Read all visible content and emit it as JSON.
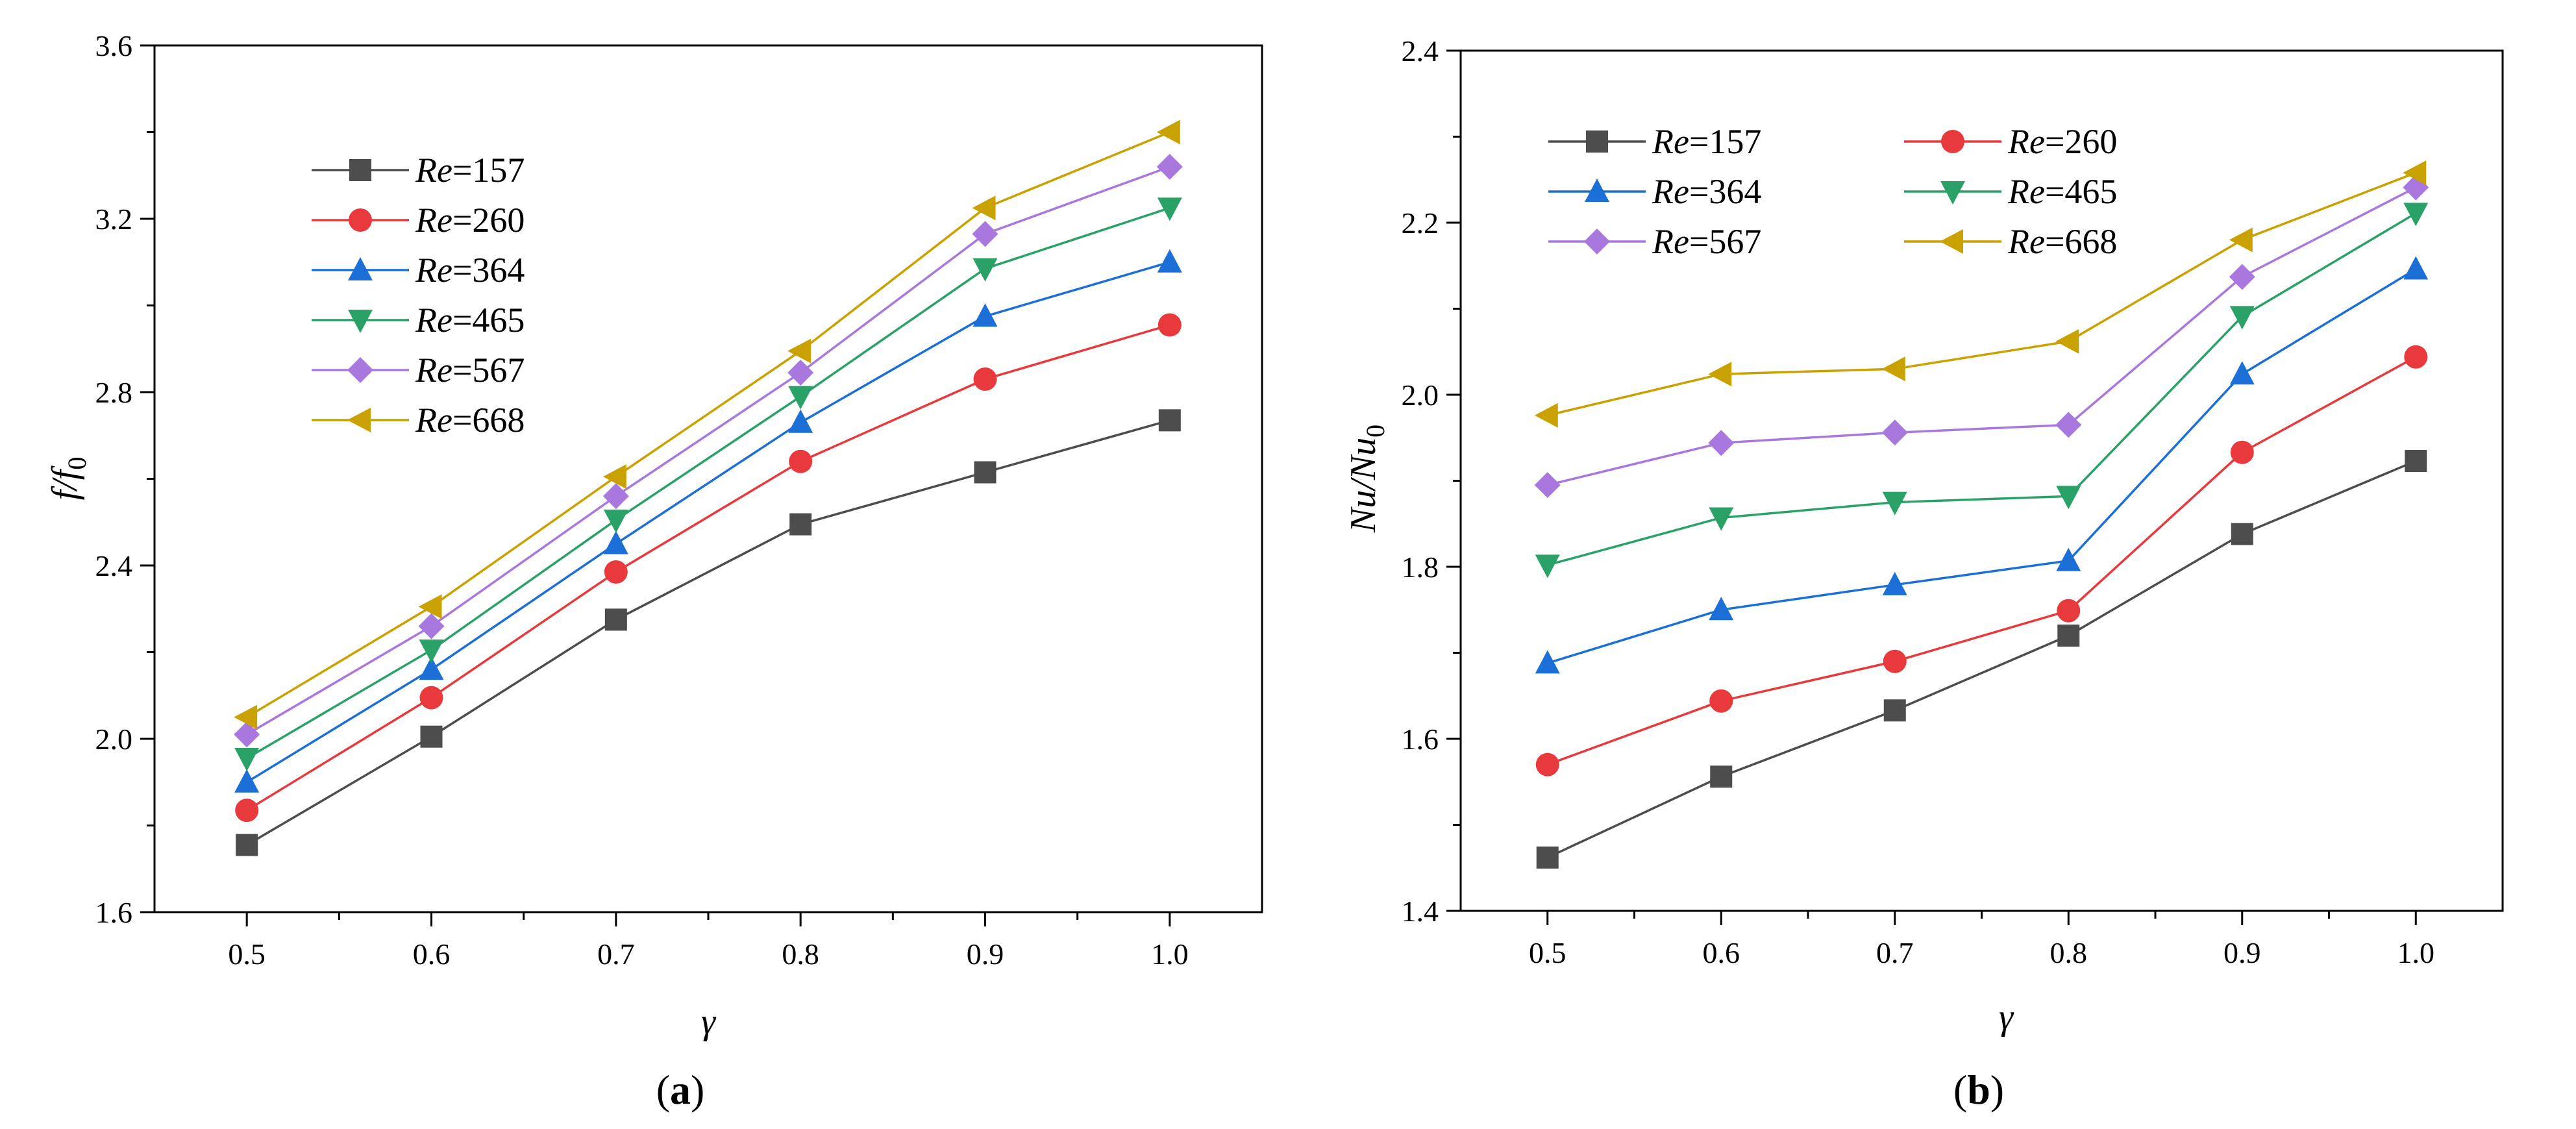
{
  "chart_data": [
    {
      "type": "line",
      "panel": "a",
      "panel_label": "a",
      "xlabel": "γ",
      "ylabel": {
        "main": "f/f",
        "sub": "0"
      },
      "x": [
        0.5,
        0.6,
        0.7,
        0.8,
        0.9,
        1.0
      ],
      "xticks": [
        "0.5",
        "0.6",
        "0.7",
        "0.8",
        "0.9",
        "1.0"
      ],
      "xlim": [
        0.45,
        1.05
      ],
      "ylim": [
        1.6,
        3.6
      ],
      "yticks": [
        "1.6",
        "2.0",
        "2.4",
        "2.8",
        "3.2",
        "3.6"
      ],
      "legend_position": "top-left",
      "legend_columns": 1,
      "series": [
        {
          "name": "157",
          "label_prefix": "Re",
          "color": "#4d4d4d",
          "marker": "square",
          "values": [
            1.755,
            2.005,
            2.275,
            2.495,
            2.615,
            2.735
          ]
        },
        {
          "name": "260",
          "label_prefix": "Re",
          "color": "#e8393d",
          "marker": "circle",
          "values": [
            1.835,
            2.095,
            2.385,
            2.64,
            2.83,
            2.955
          ]
        },
        {
          "name": "364",
          "label_prefix": "Re",
          "color": "#1b6fd6",
          "marker": "triangle-up",
          "values": [
            1.9,
            2.16,
            2.45,
            2.73,
            2.975,
            3.1
          ]
        },
        {
          "name": "465",
          "label_prefix": "Re",
          "color": "#2aa267",
          "marker": "triangle-down",
          "values": [
            1.955,
            2.205,
            2.505,
            2.79,
            3.085,
            3.225
          ]
        },
        {
          "name": "567",
          "label_prefix": "Re",
          "color": "#a978de",
          "marker": "diamond",
          "values": [
            2.01,
            2.26,
            2.56,
            2.845,
            3.165,
            3.32
          ]
        },
        {
          "name": "668",
          "label_prefix": "Re",
          "color": "#c9a100",
          "marker": "triangle-left",
          "values": [
            2.05,
            2.305,
            2.605,
            2.895,
            3.225,
            3.4
          ]
        }
      ]
    },
    {
      "type": "line",
      "panel": "b",
      "panel_label": "b",
      "xlabel": "γ",
      "ylabel": {
        "main": "Nu/Nu",
        "sub": "0"
      },
      "x": [
        0.5,
        0.6,
        0.7,
        0.8,
        0.9,
        1.0
      ],
      "xticks": [
        "0.5",
        "0.6",
        "0.7",
        "0.8",
        "0.9",
        "1.0"
      ],
      "xlim": [
        0.45,
        1.05
      ],
      "ylim": [
        1.4,
        2.4
      ],
      "yticks": [
        "1.4",
        "1.6",
        "1.8",
        "2.0",
        "2.2",
        "2.4"
      ],
      "legend_position": "top-left",
      "legend_columns": 2,
      "series": [
        {
          "name": "157",
          "label_prefix": "Re",
          "color": "#4d4d4d",
          "marker": "square",
          "values": [
            1.462,
            1.556,
            1.633,
            1.72,
            1.838,
            1.923
          ]
        },
        {
          "name": "260",
          "label_prefix": "Re",
          "color": "#e8393d",
          "marker": "circle",
          "values": [
            1.57,
            1.644,
            1.69,
            1.749,
            1.933,
            2.044
          ]
        },
        {
          "name": "364",
          "label_prefix": "Re",
          "color": "#1b6fd6",
          "marker": "triangle-up",
          "values": [
            1.688,
            1.75,
            1.779,
            1.807,
            2.024,
            2.146
          ]
        },
        {
          "name": "465",
          "label_prefix": "Re",
          "color": "#2aa267",
          "marker": "triangle-down",
          "values": [
            1.802,
            1.857,
            1.875,
            1.882,
            2.091,
            2.211
          ]
        },
        {
          "name": "567",
          "label_prefix": "Re",
          "color": "#a978de",
          "marker": "diamond",
          "values": [
            1.895,
            1.944,
            1.956,
            1.965,
            2.137,
            2.241
          ]
        },
        {
          "name": "668",
          "label_prefix": "Re",
          "color": "#c9a100",
          "marker": "triangle-left",
          "values": [
            1.976,
            2.024,
            2.03,
            2.062,
            2.18,
            2.258
          ]
        }
      ]
    }
  ]
}
